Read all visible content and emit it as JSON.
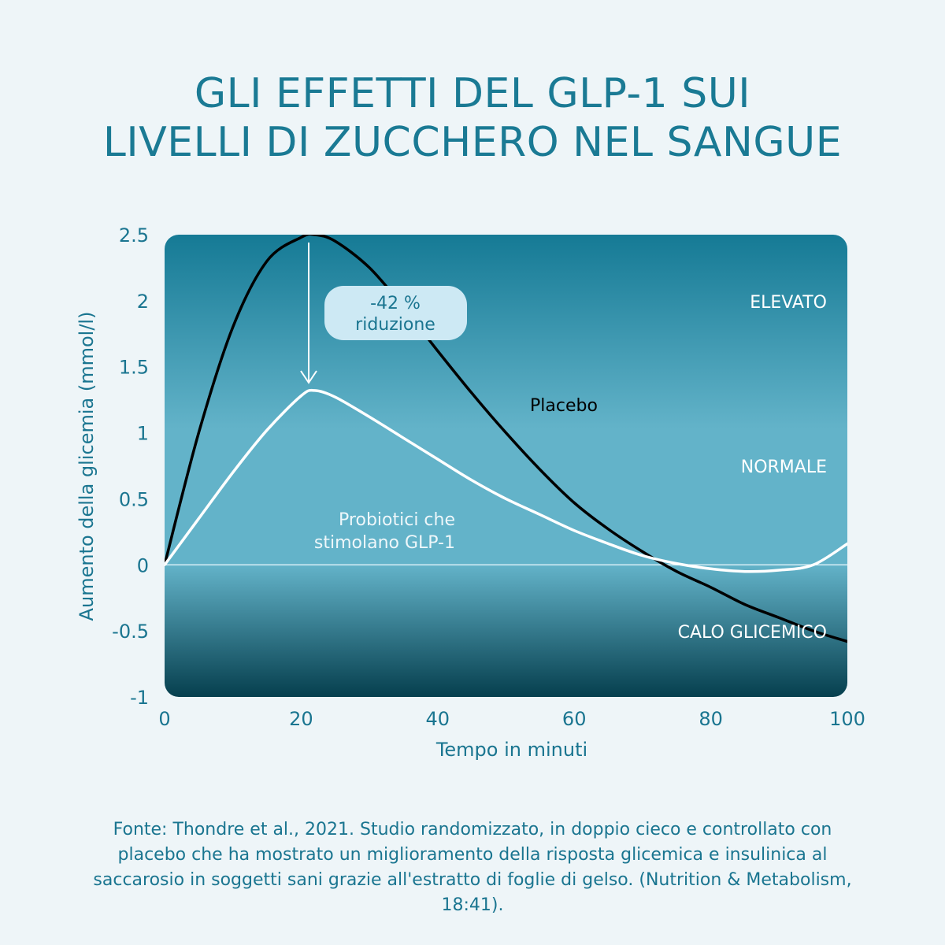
{
  "title": {
    "line1": "GLI EFFETTI DEL GLP-1 SUI",
    "line2": "LIVELLI DI ZUCCHERO NEL SANGUE"
  },
  "colors": {
    "title": "#1a7a94",
    "band_top": "#157a95",
    "band_mid": "#63b3c9",
    "band_bottom": "#063f4e",
    "placebo_line": "#000000",
    "probiotic_line": "#ffffff",
    "callout_bg": "#cde9f4"
  },
  "chart_data": {
    "type": "line",
    "xlabel": "Tempo in minuti",
    "ylabel": "Aumento della glicemia (mmol/l)",
    "xlim": [
      0,
      100
    ],
    "ylim": [
      -1,
      2.5
    ],
    "x_ticks": [
      "0",
      "20",
      "40",
      "60",
      "80",
      "100"
    ],
    "y_ticks": [
      "2.5",
      "2",
      "1.5",
      "1",
      "0.5",
      "0",
      "-0.5",
      "-1"
    ],
    "zones": [
      "ELEVATO",
      "NORMALE",
      "CALO GLICEMICO"
    ],
    "series": [
      {
        "name": "Placebo",
        "x": [
          0,
          5,
          10,
          15,
          20,
          22,
          25,
          30,
          35,
          40,
          45,
          50,
          55,
          60,
          65,
          70,
          75,
          80,
          85,
          90,
          95,
          100
        ],
        "y": [
          0,
          1.0,
          1.8,
          2.3,
          2.48,
          2.5,
          2.45,
          2.25,
          1.95,
          1.62,
          1.3,
          1.0,
          0.72,
          0.47,
          0.27,
          0.1,
          -0.05,
          -0.17,
          -0.3,
          -0.4,
          -0.5,
          -0.58
        ]
      },
      {
        "name": "Probiotici che stimolano GLP-1",
        "x": [
          0,
          5,
          10,
          15,
          20,
          22,
          25,
          30,
          35,
          40,
          45,
          50,
          55,
          60,
          65,
          70,
          75,
          80,
          85,
          90,
          95,
          100
        ],
        "y": [
          0,
          0.35,
          0.7,
          1.02,
          1.28,
          1.32,
          1.27,
          1.12,
          0.96,
          0.8,
          0.64,
          0.5,
          0.38,
          0.26,
          0.16,
          0.07,
          0.01,
          -0.03,
          -0.05,
          -0.04,
          0.0,
          0.16
        ]
      }
    ],
    "annotations": {
      "placebo_label": "Placebo",
      "probiotic_label_line1": "Probiotici che",
      "probiotic_label_line2": "stimolano GLP-1",
      "callout_line1": "-42 %",
      "callout_line2": "riduzione"
    }
  },
  "source": "Fonte: Thondre et al., 2021. Studio randomizzato, in doppio cieco e controllato con placebo che ha mostrato un miglioramento della risposta glicemica e insulinica al saccarosio in soggetti sani grazie all'estratto di foglie di gelso. (Nutrition & Metabolism, 18:41)."
}
